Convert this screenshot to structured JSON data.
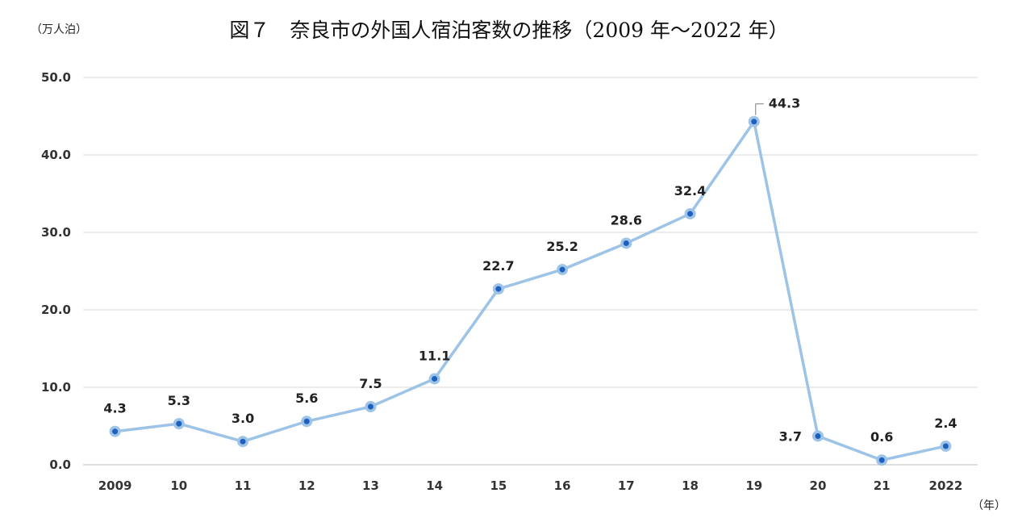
{
  "chart_data": {
    "type": "line",
    "title": "図７　奈良市の外国人宿泊客数の推移（2009 年～2022 年）",
    "ylabel": "（万人泊）",
    "xlabel": "（年）",
    "categories": [
      "2009",
      "10",
      "11",
      "12",
      "13",
      "14",
      "15",
      "16",
      "17",
      "18",
      "19",
      "20",
      "21",
      "2022"
    ],
    "series": [
      {
        "values": [
          4.3,
          5.3,
          3.0,
          5.6,
          7.5,
          11.1,
          22.7,
          25.2,
          28.6,
          32.4,
          44.3,
          3.7,
          0.6,
          2.4
        ]
      }
    ],
    "data_labels": [
      "4.3",
      "5.3",
      "3.0",
      "5.6",
      "7.5",
      "11.1",
      "22.7",
      "25.2",
      "28.6",
      "32.4",
      "44.3",
      "3.7",
      "0.6",
      "2.4"
    ],
    "ylim": [
      0,
      50
    ],
    "yticks": [
      "0.0",
      "10.0",
      "20.0",
      "30.0",
      "40.0",
      "50.0"
    ],
    "grid": true,
    "colors": {
      "line": "#9dc3e6",
      "marker_center": "#1f5fbf",
      "grid": "#d9d9d9"
    }
  }
}
